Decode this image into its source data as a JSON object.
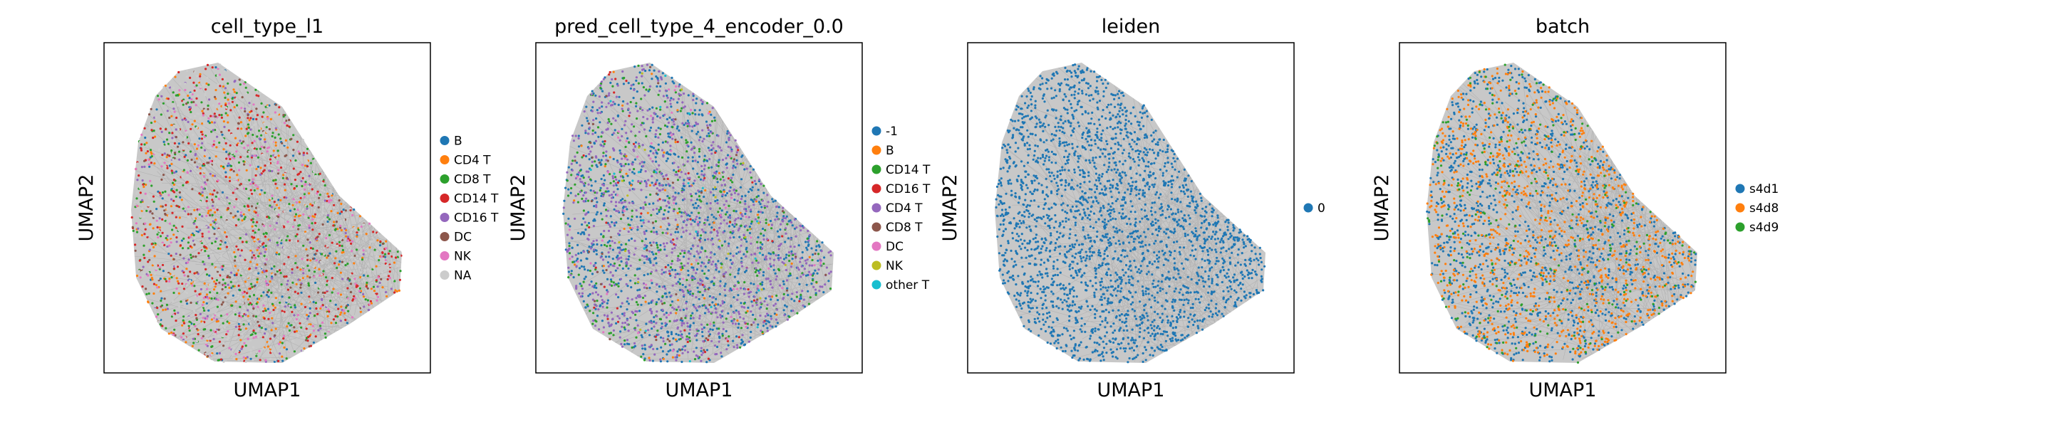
{
  "colors": {
    "frame": "#000000",
    "edges": "#8c8c8c",
    "background": "#ffffff"
  },
  "chart_data": [
    {
      "type": "scatter",
      "title": "cell_type_l1",
      "xlabel": "UMAP1",
      "ylabel": "UMAP2",
      "grid": false,
      "legend_position": "right",
      "series": [
        {
          "name": "B",
          "color": "#1f77b4",
          "share": 0.05
        },
        {
          "name": "CD4 T",
          "color": "#ff7f0e",
          "share": 0.14
        },
        {
          "name": "CD8 T",
          "color": "#2ca02c",
          "share": 0.16
        },
        {
          "name": "CD14 T",
          "color": "#d62728",
          "share": 0.13
        },
        {
          "name": "CD16 T",
          "color": "#9467bd",
          "share": 0.08
        },
        {
          "name": "DC",
          "color": "#8c564b",
          "share": 0.07
        },
        {
          "name": "NK",
          "color": "#e377c2",
          "share": 0.08
        },
        {
          "name": "NA",
          "color": "#cccccc",
          "share": 0.29
        }
      ]
    },
    {
      "type": "scatter",
      "title": "pred_cell_type_4_encoder_0.0",
      "xlabel": "UMAP1",
      "ylabel": "UMAP2",
      "grid": false,
      "legend_position": "right",
      "series": [
        {
          "name": "-1",
          "color": "#1f77b4",
          "share": 0.4
        },
        {
          "name": "B",
          "color": "#ff7f0e",
          "share": 0.02
        },
        {
          "name": "CD14 T",
          "color": "#2ca02c",
          "share": 0.14
        },
        {
          "name": "CD16 T",
          "color": "#d62728",
          "share": 0.02
        },
        {
          "name": "CD4 T",
          "color": "#9467bd",
          "share": 0.36
        },
        {
          "name": "CD8 T",
          "color": "#8c564b",
          "share": 0.02
        },
        {
          "name": "DC",
          "color": "#e377c2",
          "share": 0.02
        },
        {
          "name": "NK",
          "color": "#bcbd22",
          "share": 0.01
        },
        {
          "name": "other T",
          "color": "#17becf",
          "share": 0.01
        }
      ]
    },
    {
      "type": "scatter",
      "title": "leiden",
      "xlabel": "UMAP1",
      "ylabel": "UMAP2",
      "grid": false,
      "legend_position": "right",
      "series": [
        {
          "name": "0",
          "color": "#1f77b4",
          "share": 1.0
        }
      ]
    },
    {
      "type": "scatter",
      "title": "batch",
      "xlabel": "UMAP1",
      "ylabel": "UMAP2",
      "grid": false,
      "legend_position": "right",
      "series": [
        {
          "name": "s4d1",
          "color": "#1f77b4",
          "share": 0.5
        },
        {
          "name": "s4d8",
          "color": "#ff7f0e",
          "share": 0.4
        },
        {
          "name": "s4d9",
          "color": "#2ca02c",
          "share": 0.1
        }
      ]
    }
  ]
}
